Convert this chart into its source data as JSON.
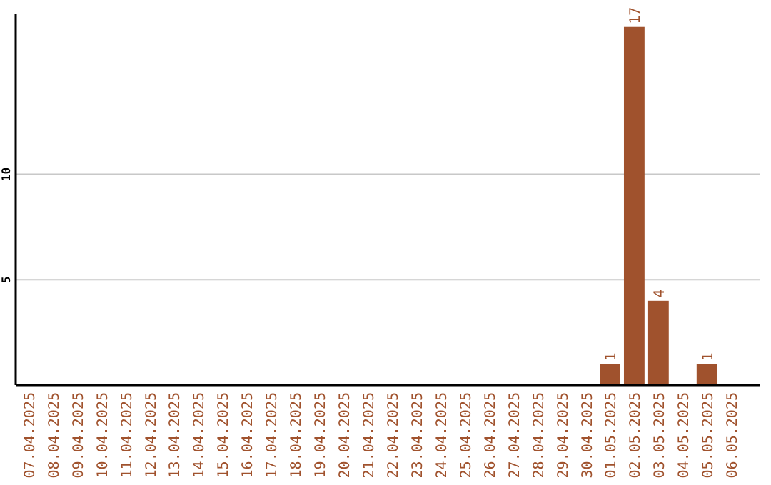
{
  "chart_data": {
    "type": "bar",
    "categories": [
      "07.04.2025",
      "08.04.2025",
      "09.04.2025",
      "10.04.2025",
      "11.04.2025",
      "12.04.2025",
      "13.04.2025",
      "14.04.2025",
      "15.04.2025",
      "16.04.2025",
      "17.04.2025",
      "18.04.2025",
      "19.04.2025",
      "20.04.2025",
      "21.04.2025",
      "22.04.2025",
      "23.04.2025",
      "24.04.2025",
      "25.04.2025",
      "26.04.2025",
      "27.04.2025",
      "28.04.2025",
      "29.04.2025",
      "30.04.2025",
      "01.05.2025",
      "02.05.2025",
      "03.05.2025",
      "04.05.2025",
      "05.05.2025",
      "06.05.2025"
    ],
    "values": [
      0,
      0,
      0,
      0,
      0,
      0,
      0,
      0,
      0,
      0,
      0,
      0,
      0,
      0,
      0,
      0,
      0,
      0,
      0,
      0,
      0,
      0,
      0,
      0,
      1,
      17,
      4,
      0,
      1,
      0
    ],
    "value_labels": [
      null,
      null,
      null,
      null,
      null,
      null,
      null,
      null,
      null,
      null,
      null,
      null,
      null,
      null,
      null,
      null,
      null,
      null,
      null,
      null,
      null,
      null,
      null,
      null,
      "1",
      "17",
      "4",
      null,
      "1",
      null
    ],
    "color": "#a0522d",
    "ylim": [
      0,
      17.6
    ],
    "yticks": [
      5,
      10
    ],
    "grid": "y"
  }
}
